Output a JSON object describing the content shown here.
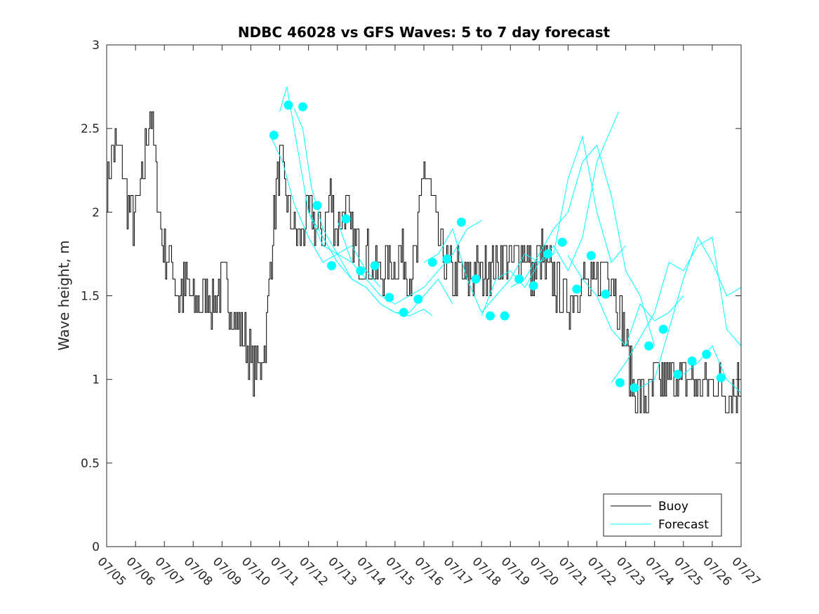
{
  "chart_data": {
    "type": "line",
    "title": "NDBC 46028 vs GFS Waves: 5 to 7 day forecast",
    "xlabel": "",
    "ylabel": "Wave height, m",
    "ylim": [
      0,
      3
    ],
    "yticks": [
      "0",
      "0.5",
      "1",
      "1.5",
      "2",
      "2.5",
      "3"
    ],
    "xlim": [
      "07/05",
      "07/27"
    ],
    "xticks": [
      "07/05",
      "07/06",
      "07/07",
      "07/08",
      "07/09",
      "07/10",
      "07/11",
      "07/12",
      "07/13",
      "07/14",
      "07/15",
      "07/16",
      "07/17",
      "07/18",
      "07/19",
      "07/20",
      "07/21",
      "07/22",
      "07/23",
      "07/24",
      "07/25",
      "07/26",
      "07/27"
    ],
    "grid": false,
    "legend": {
      "position": "bottom-right",
      "entries": [
        "Buoy",
        "Forecast"
      ]
    },
    "colors": {
      "buoy": "#000000",
      "forecast": "#00ffff"
    },
    "buoy_series": {
      "name": "Buoy",
      "x_day": [
        0,
        0.25,
        0.5,
        0.75,
        1,
        1.25,
        1.5,
        1.75,
        2,
        2.25,
        2.5,
        2.75,
        3,
        3.25,
        3.5,
        3.75,
        4,
        4.25,
        4.5,
        4.75,
        5,
        5.25,
        5.5,
        5.75,
        6,
        6.25,
        6.5,
        6.75,
        7,
        7.25,
        7.5,
        7.75,
        8,
        8.25,
        8.5,
        8.75,
        9,
        9.25,
        9.5,
        9.75,
        10,
        10.25,
        10.5,
        10.75,
        11,
        11.25,
        11.5,
        11.75,
        12,
        12.25,
        12.5,
        12.75,
        13,
        13.25,
        13.5,
        13.75,
        14,
        14.25,
        14.5,
        14.75,
        15,
        15.25,
        15.5,
        15.75,
        16,
        16.25,
        16.5,
        16.75,
        17,
        17.25,
        17.5,
        17.75,
        18,
        18.25,
        18.5,
        18.75,
        19,
        19.25,
        19.5,
        19.75,
        20,
        20.25,
        20.5,
        20.75,
        21,
        21.25,
        21.5,
        21.75,
        22
      ],
      "values": [
        2.15,
        2.4,
        2.3,
        2.0,
        1.95,
        2.2,
        2.65,
        2.1,
        1.75,
        1.7,
        1.5,
        1.55,
        1.45,
        1.45,
        1.5,
        1.45,
        1.6,
        1.5,
        1.35,
        1.25,
        1.1,
        1.05,
        1.25,
        1.9,
        2.3,
        2.05,
        1.9,
        1.85,
        2.0,
        1.9,
        1.85,
        2.1,
        1.9,
        2.0,
        1.85,
        1.75,
        1.75,
        1.65,
        1.6,
        1.7,
        1.7,
        1.75,
        1.65,
        1.75,
        2.3,
        2.05,
        1.85,
        1.7,
        1.6,
        1.65,
        1.6,
        1.65,
        1.6,
        1.7,
        1.65,
        1.75,
        1.7,
        1.75,
        1.8,
        1.6,
        1.75,
        1.65,
        1.6,
        1.5,
        1.45,
        1.55,
        1.6,
        1.5,
        1.6,
        1.7,
        1.65,
        1.45,
        1.2,
        0.95,
        0.9,
        0.85,
        0.95,
        1.0,
        0.95,
        1.05,
        0.95,
        1.0,
        0.95,
        0.95,
        1.0,
        0.95,
        0.9,
        0.95,
        0.95
      ]
    },
    "forecast_series": [
      {
        "name": "Forecast",
        "x_day": [
          5.7,
          6.1,
          6.5,
          7.0,
          7.5,
          8.0,
          8.5
        ],
        "values": [
          2.45,
          2.3,
          2.05,
          1.85,
          1.7,
          1.75,
          1.7
        ]
      },
      {
        "name": "Forecast",
        "x_day": [
          6.0,
          6.25,
          6.6,
          7.0,
          7.5,
          8.0,
          8.5,
          9.0,
          9.5
        ],
        "values": [
          2.6,
          2.75,
          2.4,
          2.0,
          1.8,
          1.75,
          1.8,
          1.65,
          1.55
        ]
      },
      {
        "name": "Forecast",
        "x_day": [
          6.5,
          6.8,
          7.1,
          7.5,
          8.0,
          8.5,
          9.0,
          9.5,
          10.0,
          10.5,
          11.0,
          11.3
        ],
        "values": [
          2.62,
          2.5,
          2.15,
          1.9,
          1.75,
          1.6,
          1.55,
          1.45,
          1.4,
          1.38,
          1.42,
          1.38
        ]
      },
      {
        "name": "Forecast",
        "x_day": [
          7.0,
          7.5,
          8.0,
          8.5,
          9.0,
          9.5,
          10.0,
          10.5,
          11.0,
          11.5,
          12.0
        ],
        "values": [
          2.0,
          1.85,
          1.7,
          1.6,
          1.55,
          1.45,
          1.4,
          1.4,
          1.5,
          1.6,
          1.45
        ]
      },
      {
        "name": "Forecast",
        "x_day": [
          8.0,
          8.5,
          9.0,
          9.5,
          10.0,
          10.5,
          11.0,
          11.5,
          12.0,
          12.5,
          13.0
        ],
        "values": [
          1.95,
          1.7,
          1.6,
          1.5,
          1.45,
          1.5,
          1.55,
          1.65,
          1.75,
          1.9,
          1.95
        ]
      },
      {
        "name": "Forecast",
        "x_day": [
          11.0,
          11.5,
          12.0,
          12.5,
          13.0,
          13.5,
          14.0,
          14.5,
          15.0,
          15.5,
          16.0,
          16.5,
          17.0,
          17.5,
          17.75
        ],
        "values": [
          1.7,
          1.75,
          1.9,
          1.6,
          1.4,
          1.5,
          1.6,
          1.75,
          1.7,
          1.8,
          1.65,
          1.85,
          2.3,
          2.5,
          2.6
        ]
      },
      {
        "name": "Forecast",
        "x_day": [
          13.0,
          13.5,
          14.0,
          14.5,
          15.0,
          15.5,
          16.0,
          16.5,
          17.0,
          17.5,
          18.0
        ],
        "values": [
          1.38,
          1.6,
          1.65,
          1.55,
          1.7,
          1.75,
          2.2,
          2.45,
          2.0,
          1.7,
          1.8
        ]
      },
      {
        "name": "Forecast",
        "x_day": [
          14.0,
          14.5,
          15.0,
          15.5,
          16.0,
          16.5,
          17.0,
          17.5,
          18.0,
          18.5,
          19.0
        ],
        "values": [
          1.55,
          1.6,
          1.75,
          1.9,
          2.0,
          2.3,
          2.4,
          2.1,
          1.65,
          1.5,
          1.2
        ]
      },
      {
        "name": "Forecast",
        "x_day": [
          16.0,
          16.5,
          17.0,
          17.5,
          18.0,
          18.5,
          19.0,
          19.5,
          20.0
        ],
        "values": [
          1.74,
          1.6,
          1.5,
          1.3,
          1.2,
          1.45,
          1.35,
          1.4,
          1.5
        ]
      },
      {
        "name": "Forecast",
        "x_day": [
          17.5,
          18.0,
          18.5,
          19.0,
          19.5,
          20.0,
          20.5,
          21.0,
          21.5,
          22.0
        ],
        "values": [
          0.98,
          1.1,
          1.25,
          1.4,
          1.7,
          1.65,
          1.8,
          1.85,
          1.3,
          1.2
        ]
      },
      {
        "name": "Forecast",
        "x_day": [
          18.5,
          19.0,
          19.5,
          20.0,
          20.5,
          21.0,
          21.5,
          22.0
        ],
        "values": [
          0.95,
          1.0,
          1.3,
          1.6,
          1.85,
          1.7,
          1.5,
          1.55
        ]
      },
      {
        "name": "Forecast",
        "x_day": [
          20.0,
          20.5,
          21.0,
          21.5,
          22.0
        ],
        "values": [
          1.03,
          1.1,
          1.2,
          1.0,
          0.92
        ]
      }
    ],
    "forecast_points": {
      "x_day": [
        5.8,
        6.3,
        6.8,
        7.3,
        7.8,
        8.3,
        8.8,
        9.3,
        9.8,
        10.3,
        10.8,
        11.3,
        11.8,
        12.3,
        12.8,
        13.3,
        13.8,
        14.3,
        14.8,
        15.3,
        15.8,
        16.3,
        16.8,
        17.3,
        17.8,
        18.3,
        18.8,
        19.3,
        19.8,
        20.3,
        20.8,
        21.3
      ],
      "values": [
        2.46,
        2.64,
        2.63,
        2.04,
        1.68,
        1.96,
        1.65,
        1.68,
        1.49,
        1.4,
        1.48,
        1.7,
        1.72,
        1.94,
        1.6,
        1.38,
        1.38,
        1.6,
        1.56,
        1.75,
        1.82,
        1.54,
        1.74,
        1.51,
        0.98,
        0.95,
        1.2,
        1.3,
        1.03,
        1.11,
        1.15,
        1.01
      ]
    }
  }
}
